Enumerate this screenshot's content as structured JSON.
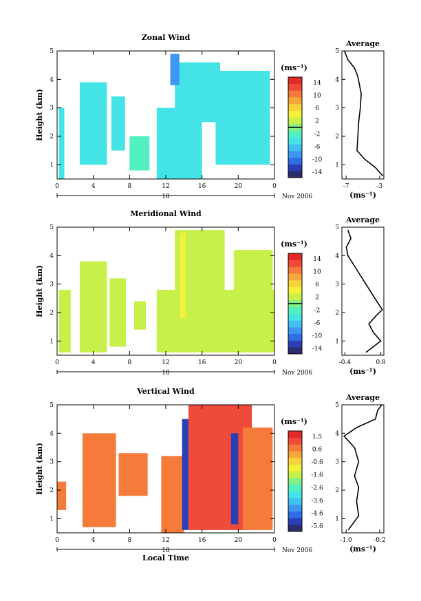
{
  "chart_data": [
    {
      "type": "heatmap",
      "id": "zonal",
      "title": "Zonal Wind",
      "ylabel": "Height (km)",
      "xlabel": "",
      "x_ticks": [
        "0",
        "4",
        "8",
        "12",
        "16",
        "20",
        "0"
      ],
      "xlim": [
        0,
        24
      ],
      "y_ticks": [
        "1",
        "2",
        "3",
        "4",
        "5"
      ],
      "ylim": [
        0.5,
        5
      ],
      "date_label": "18",
      "month_label": "Nov 2006",
      "colorbar": {
        "unit": "(ms⁻¹)",
        "labels": [
          "14",
          "10",
          "6",
          "2",
          "-2",
          "-6",
          "-10",
          "-14"
        ],
        "marker_value": 0
      },
      "profile": {
        "title": "Average",
        "x_ticks": [
          "-7",
          "-3"
        ],
        "xlim": [
          -7.5,
          -2.5
        ],
        "xlabel": "(ms⁻¹)",
        "y_ticks": [
          "1",
          "2",
          "3",
          "4",
          "5"
        ],
        "points": [
          [
            -2.6,
            0.6
          ],
          [
            -3.5,
            0.9
          ],
          [
            -4.8,
            1.2
          ],
          [
            -5.7,
            1.5
          ],
          [
            -5.6,
            2.0
          ],
          [
            -5.5,
            2.5
          ],
          [
            -5.3,
            3.0
          ],
          [
            -5.2,
            3.5
          ],
          [
            -5.4,
            3.8
          ],
          [
            -5.6,
            4.1
          ],
          [
            -6.0,
            4.4
          ],
          [
            -6.8,
            4.7
          ],
          [
            -7.2,
            5.0
          ]
        ]
      },
      "blocks": [
        {
          "x0": 0.2,
          "x1": 0.8,
          "y0": 0.5,
          "y1": 3.0,
          "level": -5
        },
        {
          "x0": 2.5,
          "x1": 5.5,
          "y0": 1.0,
          "y1": 3.9,
          "level": -5
        },
        {
          "x0": 6.0,
          "x1": 7.5,
          "y0": 1.5,
          "y1": 3.4,
          "level": -5
        },
        {
          "x0": 8.0,
          "x1": 10.2,
          "y0": 0.8,
          "y1": 2.0,
          "level": -3
        },
        {
          "x0": 11.0,
          "x1": 16.0,
          "y0": 0.5,
          "y1": 3.0,
          "level": -5
        },
        {
          "x0": 13.0,
          "x1": 18.0,
          "y0": 2.5,
          "y1": 4.6,
          "level": -5
        },
        {
          "x0": 17.5,
          "x1": 23.5,
          "y0": 1.0,
          "y1": 4.3,
          "level": -5
        },
        {
          "x0": 12.5,
          "x1": 13.5,
          "y0": 3.8,
          "y1": 4.9,
          "level": -8
        }
      ]
    },
    {
      "type": "heatmap",
      "id": "meridional",
      "title": "Meridional Wind",
      "ylabel": "Height (km)",
      "xlabel": "",
      "x_ticks": [
        "0",
        "4",
        "8",
        "12",
        "16",
        "20",
        "0"
      ],
      "xlim": [
        0,
        24
      ],
      "y_ticks": [
        "1",
        "2",
        "3",
        "4",
        "5"
      ],
      "ylim": [
        0.5,
        5
      ],
      "date_label": "18",
      "month_label": "Nov 2006",
      "colorbar": {
        "unit": "(ms⁻¹)",
        "labels": [
          "14",
          "10",
          "6",
          "2",
          "-2",
          "-6",
          "-10",
          "-14"
        ],
        "marker_value": 0
      },
      "profile": {
        "title": "Average",
        "x_ticks": [
          "-0.4",
          "0.8"
        ],
        "xlim": [
          -0.5,
          0.9
        ],
        "xlabel": "(ms⁻¹)",
        "y_ticks": [
          "1",
          "2",
          "3",
          "4",
          "5"
        ],
        "points": [
          [
            0.3,
            0.6
          ],
          [
            0.8,
            1.0
          ],
          [
            0.55,
            1.3
          ],
          [
            0.4,
            1.6
          ],
          [
            0.65,
            1.9
          ],
          [
            0.85,
            2.1
          ],
          [
            0.6,
            2.5
          ],
          [
            0.3,
            3.0
          ],
          [
            0.0,
            3.5
          ],
          [
            -0.3,
            4.0
          ],
          [
            -0.35,
            4.3
          ],
          [
            -0.2,
            4.6
          ],
          [
            -0.3,
            4.9
          ]
        ]
      },
      "blocks": [
        {
          "x0": 0.2,
          "x1": 1.5,
          "y0": 0.6,
          "y1": 2.8,
          "level": 1
        },
        {
          "x0": 2.5,
          "x1": 5.5,
          "y0": 0.6,
          "y1": 3.8,
          "level": 1
        },
        {
          "x0": 5.8,
          "x1": 7.6,
          "y0": 0.8,
          "y1": 3.2,
          "level": 1
        },
        {
          "x0": 8.5,
          "x1": 9.8,
          "y0": 1.4,
          "y1": 2.4,
          "level": 1
        },
        {
          "x0": 11.0,
          "x1": 24.0,
          "y0": 0.6,
          "y1": 2.8,
          "level": 1
        },
        {
          "x0": 13.0,
          "x1": 18.5,
          "y0": 2.5,
          "y1": 4.9,
          "level": 1
        },
        {
          "x0": 19.5,
          "x1": 23.8,
          "y0": 2.2,
          "y1": 4.2,
          "level": 1
        },
        {
          "x0": 13.6,
          "x1": 14.2,
          "y0": 1.8,
          "y1": 4.8,
          "level": 3
        }
      ]
    },
    {
      "type": "heatmap",
      "id": "vertical",
      "title": "Vertical Wind",
      "ylabel": "Height (km)",
      "xlabel": "Local Time",
      "x_ticks": [
        "0",
        "4",
        "8",
        "12",
        "16",
        "20",
        "0"
      ],
      "xlim": [
        0,
        24
      ],
      "y_ticks": [
        "1",
        "2",
        "3",
        "4",
        "5"
      ],
      "ylim": [
        0.5,
        5
      ],
      "date_label": "18",
      "month_label": "Nov 2006",
      "colorbar": {
        "unit": "(ms⁻¹)",
        "labels": [
          "1.5",
          "0.6",
          "-0.6",
          "-1.6",
          "-2.6",
          "-3.6",
          "-4.6",
          "-5.6"
        ],
        "marker_value": null
      },
      "profile": {
        "title": "Average",
        "x_ticks": [
          "-1.0",
          "-0.2"
        ],
        "xlim": [
          -1.1,
          -0.1
        ],
        "xlabel": "(ms⁻¹)",
        "y_ticks": [
          "1",
          "2",
          "3",
          "4",
          "5"
        ],
        "points": [
          [
            -0.95,
            0.6
          ],
          [
            -0.7,
            1.1
          ],
          [
            -0.75,
            1.6
          ],
          [
            -0.7,
            2.1
          ],
          [
            -0.8,
            2.5
          ],
          [
            -0.7,
            3.0
          ],
          [
            -0.8,
            3.5
          ],
          [
            -1.05,
            3.9
          ],
          [
            -0.75,
            4.2
          ],
          [
            -0.3,
            4.5
          ],
          [
            -0.25,
            4.8
          ],
          [
            -0.15,
            5.0
          ]
        ]
      },
      "blocks": [
        {
          "x0": 0.0,
          "x1": 1.0,
          "y0": 1.3,
          "y1": 2.3,
          "level": 0.6
        },
        {
          "x0": 2.8,
          "x1": 6.5,
          "y0": 0.7,
          "y1": 4.0,
          "level": 0.6
        },
        {
          "x0": 6.8,
          "x1": 10.0,
          "y0": 1.8,
          "y1": 3.3,
          "level": 0.6
        },
        {
          "x0": 11.5,
          "x1": 14.0,
          "y0": 0.5,
          "y1": 3.2,
          "level": 0.6
        },
        {
          "x0": 14.5,
          "x1": 21.5,
          "y0": 0.6,
          "y1": 5.0,
          "level": 1.0
        },
        {
          "x0": 20.5,
          "x1": 23.8,
          "y0": 0.6,
          "y1": 4.2,
          "level": 0.6
        },
        {
          "x0": 13.8,
          "x1": 14.5,
          "y0": 0.6,
          "y1": 4.5,
          "level": -5.3
        },
        {
          "x0": 19.2,
          "x1": 20.0,
          "y0": 0.8,
          "y1": 4.0,
          "level": -5.3
        }
      ]
    }
  ]
}
